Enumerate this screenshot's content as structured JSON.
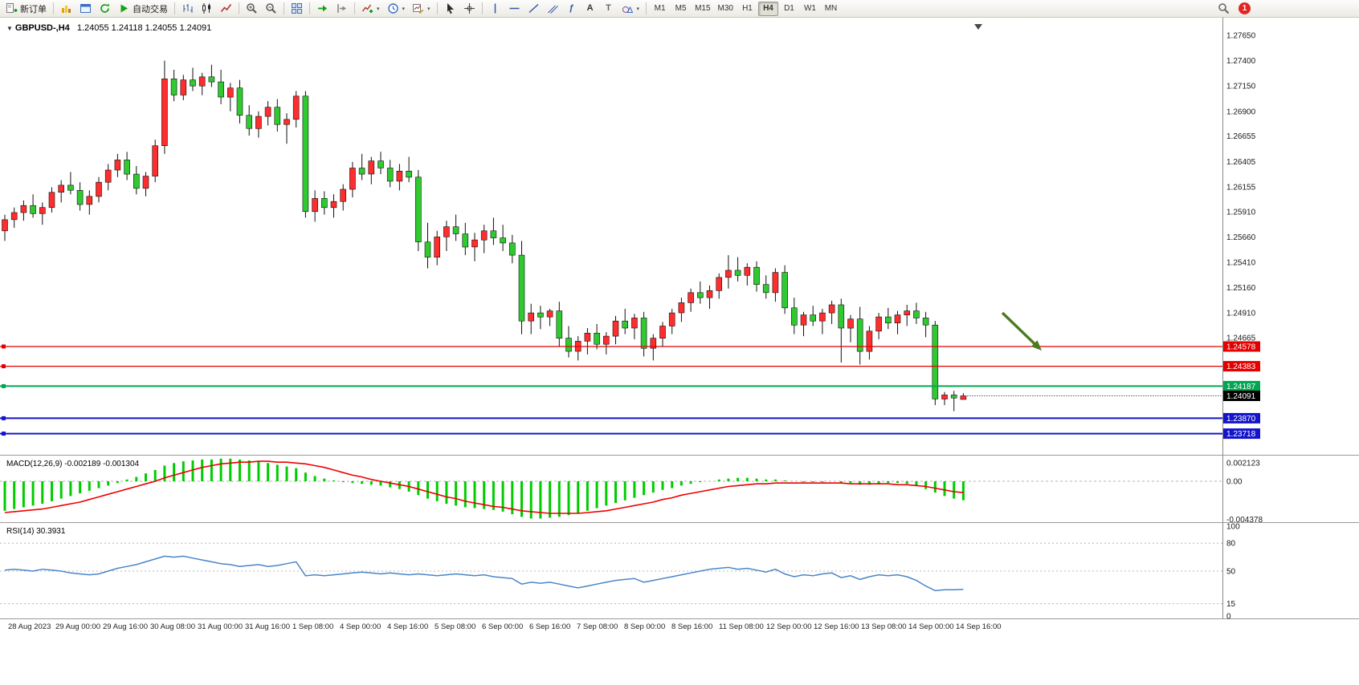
{
  "toolbar": {
    "new_order_label": "新订单",
    "auto_trading_label": "自动交易",
    "fibo_tool_label": "ƒ",
    "text_tool_label": "A",
    "label_tool_label": "T",
    "timeframes": [
      "M1",
      "M5",
      "M15",
      "M30",
      "H1",
      "H4",
      "D1",
      "W1",
      "MN"
    ],
    "active_timeframe": "H4",
    "notification_count": "1"
  },
  "chart": {
    "symbol_dropdown_glyph": "▼",
    "title": "GBPUSD-,H4",
    "ohlc_text": "1.24055 1.24118 1.24055 1.24091"
  },
  "price_axis": {
    "labels": [
      "1.27650",
      "1.27400",
      "1.27150",
      "1.26900",
      "1.26655",
      "1.26405",
      "1.26155",
      "1.25910",
      "1.25660",
      "1.25410",
      "1.25160",
      "1.24910",
      "1.24665"
    ]
  },
  "levels": [
    {
      "label": "1.24578",
      "price": 1.24578,
      "color": "#e40000",
      "line": true,
      "width": 1.2
    },
    {
      "label": "1.24383",
      "price": 1.24383,
      "color": "#e40000",
      "line": true,
      "width": 1.2
    },
    {
      "label": "1.24187",
      "price": 1.24187,
      "color": "#00a651",
      "line": true,
      "width": 2
    },
    {
      "label": "1.24091",
      "price": 1.24091,
      "color": "#000000",
      "line": false,
      "width": 1
    },
    {
      "label": "1.23870",
      "price": 1.2387,
      "color": "#1414cc",
      "line": true,
      "width": 2
    },
    {
      "label": "1.23718",
      "price": 1.23718,
      "color": "#1414cc",
      "line": true,
      "width": 2
    }
  ],
  "indicators": {
    "macd": {
      "title": "MACD(12,26,9)",
      "value_main": "-0.002189",
      "value_signal": "-0.001304",
      "scale_labels": [
        {
          "text": "0.002123",
          "value": 0.002123
        },
        {
          "text": "0.00",
          "value": 0
        },
        {
          "text": "-0.004378",
          "value": -0.004378
        }
      ]
    },
    "rsi": {
      "title": "RSI(14)",
      "value": "30.3931",
      "scale_labels": [
        {
          "text": "100",
          "value": 100
        },
        {
          "text": "80",
          "value": 80
        },
        {
          "text": "50",
          "value": 50
        },
        {
          "text": "15",
          "value": 15
        },
        {
          "text": "0",
          "value": 0
        }
      ],
      "levels": [
        80,
        50,
        15
      ]
    }
  },
  "time_axis": {
    "labels": [
      "28 Aug 2023",
      "29 Aug 00:00",
      "29 Aug 16:00",
      "30 Aug 08:00",
      "31 Aug 00:00",
      "31 Aug 16:00",
      "1 Sep 08:00",
      "4 Sep 00:00",
      "4 Sep 16:00",
      "5 Sep 08:00",
      "6 Sep 00:00",
      "6 Sep 16:00",
      "7 Sep 08:00",
      "8 Sep 00:00",
      "8 Sep 16:00",
      "11 Sep 08:00",
      "12 Sep 00:00",
      "12 Sep 16:00",
      "13 Sep 08:00",
      "14 Sep 00:00",
      "14 Sep 16:00"
    ]
  },
  "annotation": {
    "type": "arrow",
    "color": "#4c7a1f"
  },
  "chart_data": {
    "type": "candlestick",
    "symbol": "GBPUSD-",
    "timeframe": "H4",
    "price_range": {
      "top": 1.27777,
      "bottom": 1.23517
    },
    "colors": {
      "up": "#ff2d2d",
      "down": "#2fca2f",
      "wick": "#111111"
    },
    "candles": [
      [
        1.2572,
        1.2588,
        1.2562,
        1.2583
      ],
      [
        1.2583,
        1.2595,
        1.2575,
        1.259
      ],
      [
        1.259,
        1.2602,
        1.2582,
        1.2597
      ],
      [
        1.2597,
        1.2608,
        1.2585,
        1.2589
      ],
      [
        1.2589,
        1.26,
        1.2578,
        1.2595
      ],
      [
        1.2595,
        1.2615,
        1.259,
        1.261
      ],
      [
        1.261,
        1.2622,
        1.26,
        1.2617
      ],
      [
        1.2617,
        1.263,
        1.2608,
        1.2612
      ],
      [
        1.2612,
        1.262,
        1.2592,
        1.2598
      ],
      [
        1.2598,
        1.2612,
        1.2588,
        1.2606
      ],
      [
        1.2606,
        1.2625,
        1.26,
        1.262
      ],
      [
        1.262,
        1.2638,
        1.2612,
        1.2632
      ],
      [
        1.2632,
        1.2648,
        1.2625,
        1.2642
      ],
      [
        1.2642,
        1.265,
        1.2622,
        1.2628
      ],
      [
        1.2628,
        1.2636,
        1.2608,
        1.2614
      ],
      [
        1.2614,
        1.263,
        1.2606,
        1.2626
      ],
      [
        1.2626,
        1.2662,
        1.262,
        1.2656
      ],
      [
        1.2656,
        1.274,
        1.2648,
        1.2722
      ],
      [
        1.2722,
        1.2731,
        1.27,
        1.2706
      ],
      [
        1.2706,
        1.2726,
        1.2701,
        1.2721
      ],
      [
        1.2721,
        1.2733,
        1.271,
        1.2715
      ],
      [
        1.2715,
        1.2728,
        1.2706,
        1.2724
      ],
      [
        1.2724,
        1.2736,
        1.2714,
        1.2719
      ],
      [
        1.2719,
        1.2731,
        1.2697,
        1.2704
      ],
      [
        1.2704,
        1.2718,
        1.269,
        1.2713
      ],
      [
        1.2713,
        1.2721,
        1.2678,
        1.2686
      ],
      [
        1.2686,
        1.2696,
        1.2666,
        1.2673
      ],
      [
        1.2673,
        1.269,
        1.2664,
        1.2685
      ],
      [
        1.2685,
        1.27,
        1.2676,
        1.2694
      ],
      [
        1.2694,
        1.2702,
        1.267,
        1.2677
      ],
      [
        1.2677,
        1.2688,
        1.2658,
        1.2682
      ],
      [
        1.2682,
        1.271,
        1.2674,
        1.2705
      ],
      [
        1.2705,
        1.271,
        1.2585,
        1.2591
      ],
      [
        1.2591,
        1.2612,
        1.2581,
        1.2604
      ],
      [
        1.2604,
        1.2611,
        1.2588,
        1.2595
      ],
      [
        1.2595,
        1.2608,
        1.2585,
        1.2601
      ],
      [
        1.2601,
        1.2618,
        1.2592,
        1.2613
      ],
      [
        1.2613,
        1.264,
        1.2605,
        1.2634
      ],
      [
        1.2634,
        1.2648,
        1.2622,
        1.2628
      ],
      [
        1.2628,
        1.2645,
        1.2618,
        1.2641
      ],
      [
        1.2641,
        1.265,
        1.2628,
        1.2634
      ],
      [
        1.2634,
        1.2642,
        1.2615,
        1.2621
      ],
      [
        1.2621,
        1.2638,
        1.2612,
        1.2631
      ],
      [
        1.2631,
        1.2645,
        1.262,
        1.2625
      ],
      [
        1.2625,
        1.2632,
        1.2552,
        1.2561
      ],
      [
        1.2561,
        1.258,
        1.2535,
        1.2546
      ],
      [
        1.2546,
        1.2572,
        1.2538,
        1.2566
      ],
      [
        1.2566,
        1.2582,
        1.2552,
        1.2576
      ],
      [
        1.2576,
        1.2588,
        1.2562,
        1.2569
      ],
      [
        1.2569,
        1.258,
        1.2548,
        1.2556
      ],
      [
        1.2556,
        1.257,
        1.2542,
        1.2563
      ],
      [
        1.2563,
        1.2578,
        1.255,
        1.2572
      ],
      [
        1.2572,
        1.2585,
        1.2558,
        1.2565
      ],
      [
        1.2565,
        1.2578,
        1.2552,
        1.256
      ],
      [
        1.256,
        1.2568,
        1.254,
        1.2548
      ],
      [
        1.2548,
        1.2562,
        1.247,
        1.2483
      ],
      [
        1.2483,
        1.25,
        1.247,
        1.2491
      ],
      [
        1.2491,
        1.2498,
        1.2475,
        1.2487
      ],
      [
        1.2487,
        1.2495,
        1.2478,
        1.2493
      ],
      [
        1.2493,
        1.2502,
        1.2458,
        1.2466
      ],
      [
        1.2466,
        1.2478,
        1.2447,
        1.2453
      ],
      [
        1.2453,
        1.2468,
        1.2444,
        1.2463
      ],
      [
        1.2463,
        1.2476,
        1.245,
        1.2471
      ],
      [
        1.2471,
        1.248,
        1.2455,
        1.246
      ],
      [
        1.246,
        1.2472,
        1.245,
        1.2468
      ],
      [
        1.2468,
        1.2488,
        1.246,
        1.2483
      ],
      [
        1.2483,
        1.2495,
        1.247,
        1.2476
      ],
      [
        1.2476,
        1.249,
        1.2465,
        1.2486
      ],
      [
        1.2486,
        1.2492,
        1.2448,
        1.2456
      ],
      [
        1.2456,
        1.247,
        1.2444,
        1.2466
      ],
      [
        1.2466,
        1.2482,
        1.2458,
        1.2478
      ],
      [
        1.2478,
        1.2495,
        1.247,
        1.2491
      ],
      [
        1.2491,
        1.2506,
        1.2482,
        1.2501
      ],
      [
        1.2501,
        1.2515,
        1.2492,
        1.2511
      ],
      [
        1.2511,
        1.2522,
        1.25,
        1.2506
      ],
      [
        1.2506,
        1.2518,
        1.2495,
        1.2513
      ],
      [
        1.2513,
        1.253,
        1.2505,
        1.2526
      ],
      [
        1.2526,
        1.2548,
        1.2515,
        1.2533
      ],
      [
        1.2533,
        1.2546,
        1.2522,
        1.2528
      ],
      [
        1.2528,
        1.254,
        1.2518,
        1.2536
      ],
      [
        1.2536,
        1.2542,
        1.2512,
        1.2519
      ],
      [
        1.2519,
        1.2528,
        1.2505,
        1.2511
      ],
      [
        1.2511,
        1.2535,
        1.2502,
        1.2531
      ],
      [
        1.2531,
        1.2538,
        1.249,
        1.2496
      ],
      [
        1.2496,
        1.2506,
        1.247,
        1.2479
      ],
      [
        1.2479,
        1.2492,
        1.2468,
        1.2489
      ],
      [
        1.2489,
        1.2498,
        1.2478,
        1.2483
      ],
      [
        1.2483,
        1.2495,
        1.247,
        1.2491
      ],
      [
        1.2491,
        1.2503,
        1.248,
        1.2499
      ],
      [
        1.2499,
        1.2505,
        1.2442,
        1.2476
      ],
      [
        1.2476,
        1.2489,
        1.2462,
        1.2485
      ],
      [
        1.2485,
        1.2497,
        1.244,
        1.2453
      ],
      [
        1.2453,
        1.2478,
        1.2445,
        1.2473
      ],
      [
        1.2473,
        1.2491,
        1.2465,
        1.2487
      ],
      [
        1.2487,
        1.2496,
        1.2475,
        1.2481
      ],
      [
        1.2481,
        1.2493,
        1.247,
        1.2489
      ],
      [
        1.2489,
        1.2499,
        1.2478,
        1.2493
      ],
      [
        1.2493,
        1.2501,
        1.248,
        1.2486
      ],
      [
        1.2486,
        1.2492,
        1.2467,
        1.2479
      ],
      [
        1.2479,
        1.2483,
        1.24,
        1.2406
      ],
      [
        1.2406,
        1.2413,
        1.24,
        1.241
      ],
      [
        1.241,
        1.2414,
        1.2394,
        1.2407
      ],
      [
        1.24055,
        1.24118,
        1.24055,
        1.24091
      ]
    ],
    "macd": {
      "range": {
        "top": 0.00277,
        "bottom": -0.00462
      },
      "histogram_color": "#00cc00",
      "signal_color": "#ee0000",
      "histogram": [
        -0.0034,
        -0.0032,
        -0.003,
        -0.0028,
        -0.0026,
        -0.0023,
        -0.002,
        -0.0017,
        -0.0014,
        -0.0011,
        -0.0008,
        -0.0005,
        -0.0002,
        0.0002,
        0.0005,
        0.0009,
        0.0013,
        0.0018,
        0.0021,
        0.0023,
        0.0024,
        0.0025,
        0.0025,
        0.0026,
        0.0026,
        0.0025,
        0.0024,
        0.0023,
        0.0021,
        0.0019,
        0.0017,
        0.0015,
        0.001,
        0.0006,
        0.0003,
        0.0001,
        -0.0001,
        -0.0002,
        -0.0003,
        -0.0004,
        -0.0005,
        -0.0007,
        -0.0009,
        -0.0012,
        -0.0016,
        -0.002,
        -0.0023,
        -0.0026,
        -0.0028,
        -0.003,
        -0.0031,
        -0.0032,
        -0.0033,
        -0.0035,
        -0.0038,
        -0.0041,
        -0.0043,
        -0.0043,
        -0.0042,
        -0.0041,
        -0.0039,
        -0.0037,
        -0.0034,
        -0.0031,
        -0.0028,
        -0.0025,
        -0.0022,
        -0.0019,
        -0.0016,
        -0.0013,
        -0.001,
        -0.0008,
        -0.0005,
        -0.0003,
        -0.0001,
        0.0,
        0.0002,
        0.0003,
        0.0004,
        0.0004,
        0.0003,
        0.0002,
        0.0002,
        0.0001,
        0.0,
        -0.0001,
        -0.0001,
        -0.0001,
        0.0,
        -0.0002,
        -0.0002,
        -0.0004,
        -0.0004,
        -0.0003,
        -0.0002,
        -0.0002,
        -0.0003,
        -0.0005,
        -0.0009,
        -0.0013,
        -0.0017,
        -0.002,
        -0.002189
      ],
      "signal": [
        -0.0036,
        -0.0035,
        -0.0034,
        -0.0033,
        -0.0032,
        -0.003,
        -0.0028,
        -0.0026,
        -0.0024,
        -0.0021,
        -0.0018,
        -0.0015,
        -0.0012,
        -0.0009,
        -0.0006,
        -0.0003,
        0.0,
        0.0004,
        0.0007,
        0.001,
        0.0013,
        0.0016,
        0.0018,
        0.002,
        0.0021,
        0.0022,
        0.0022,
        0.0023,
        0.0023,
        0.0022,
        0.0022,
        0.0021,
        0.002,
        0.0018,
        0.0016,
        0.0013,
        0.001,
        0.0007,
        0.0005,
        0.0002,
        0.0,
        -0.0002,
        -0.0004,
        -0.0006,
        -0.0009,
        -0.0012,
        -0.0015,
        -0.0018,
        -0.002,
        -0.0023,
        -0.0025,
        -0.0027,
        -0.0029,
        -0.003,
        -0.0032,
        -0.0034,
        -0.0035,
        -0.0036,
        -0.0037,
        -0.0037,
        -0.0037,
        -0.0037,
        -0.0036,
        -0.0035,
        -0.0034,
        -0.0032,
        -0.003,
        -0.0028,
        -0.0026,
        -0.0024,
        -0.0021,
        -0.0019,
        -0.0016,
        -0.0014,
        -0.0012,
        -0.001,
        -0.0008,
        -0.0006,
        -0.0005,
        -0.0004,
        -0.0003,
        -0.0003,
        -0.0002,
        -0.0002,
        -0.0002,
        -0.0002,
        -0.0002,
        -0.0002,
        -0.0002,
        -0.0002,
        -0.0003,
        -0.0003,
        -0.0003,
        -0.0003,
        -0.0003,
        -0.0004,
        -0.0004,
        -0.0005,
        -0.0006,
        -0.0008,
        -0.001,
        -0.0012,
        -0.001304
      ]
    },
    "rsi": {
      "range": [
        0,
        100
      ],
      "color": "#4a86c8",
      "values": [
        51,
        52,
        51,
        50,
        52,
        51,
        50,
        48,
        47,
        46,
        47,
        50,
        53,
        55,
        57,
        60,
        63,
        66,
        65,
        66,
        64,
        62,
        60,
        58,
        57,
        55,
        56,
        57,
        55,
        56,
        58,
        60,
        45,
        46,
        45,
        46,
        47,
        48,
        49,
        48,
        47,
        48,
        47,
        46,
        47,
        46,
        45,
        46,
        47,
        46,
        45,
        46,
        44,
        43,
        42,
        36,
        38,
        37,
        38,
        36,
        34,
        32,
        34,
        36,
        38,
        40,
        41,
        42,
        38,
        40,
        42,
        44,
        46,
        48,
        50,
        52,
        53,
        54,
        52,
        53,
        51,
        49,
        52,
        47,
        44,
        46,
        45,
        47,
        48,
        43,
        45,
        41,
        44,
        46,
        45,
        46,
        44,
        40,
        34,
        29,
        30,
        30,
        30.3931
      ]
    }
  }
}
